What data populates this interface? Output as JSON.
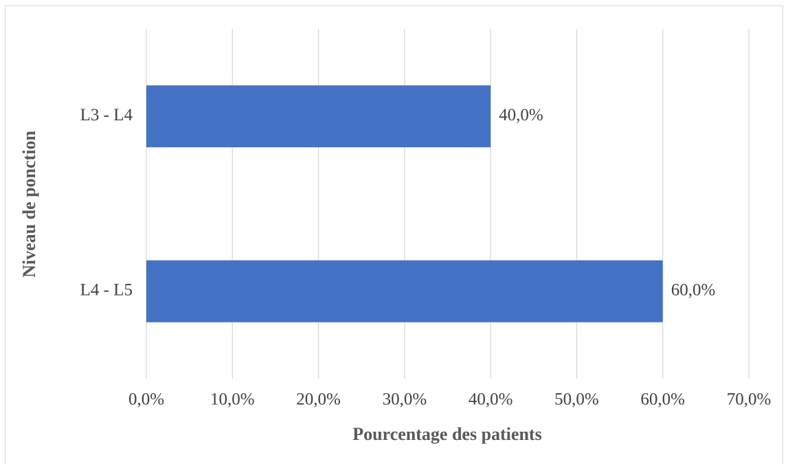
{
  "chart_data": {
    "type": "barh",
    "xlabel": "Pourcentage des patients",
    "ylabel": "Niveau de ponction",
    "categories": [
      "L3 - L4",
      "L4 - L5"
    ],
    "values": [
      40,
      60
    ],
    "value_labels": [
      "40,0%",
      "60,0%"
    ],
    "color": "#4472c4",
    "xlim": [
      0,
      70
    ],
    "xticks": [
      {
        "value": 0,
        "label": "0,0%"
      },
      {
        "value": 10,
        "label": "10,0%"
      },
      {
        "value": 20,
        "label": "20,0%"
      },
      {
        "value": 30,
        "label": "30,0%"
      },
      {
        "value": 40,
        "label": "40,0%"
      },
      {
        "value": 50,
        "label": "50,0%"
      },
      {
        "value": 60,
        "label": "60,0%"
      },
      {
        "value": 70,
        "label": "70,0%"
      }
    ],
    "grid": true
  }
}
